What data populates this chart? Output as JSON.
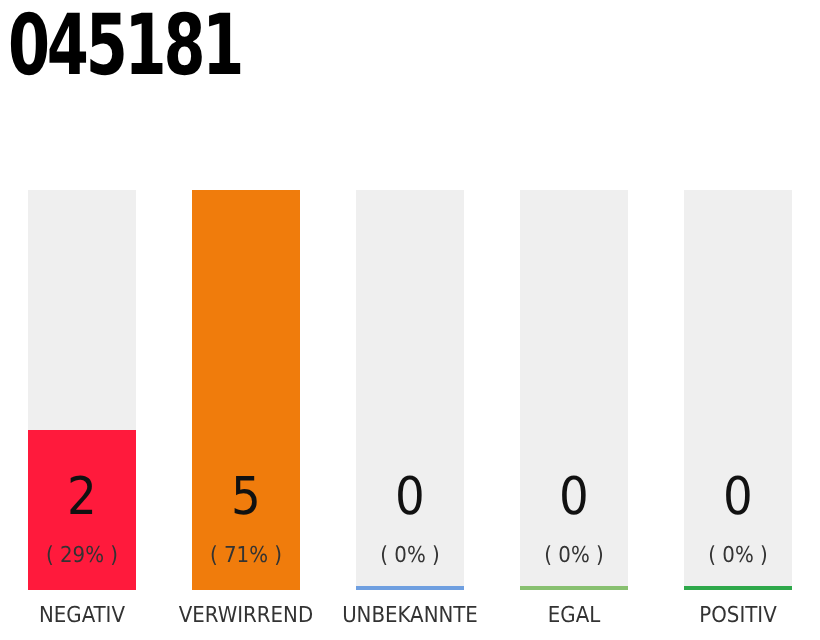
{
  "chart_data": {
    "type": "bar",
    "title": "045181",
    "categories": [
      "NEGATIV",
      "VERWIRREND",
      "UNBEKANNTE",
      "EGAL",
      "POSITIV"
    ],
    "values": [
      2,
      5,
      0,
      0,
      0
    ],
    "colors": [
      "#ff1a3c",
      "#f07c0c",
      "#6f9fe0",
      "#88c070",
      "#2ea84a"
    ],
    "value_labels": [
      "2\n( 29% )",
      "5\n( 71% )",
      "0\n( 0% )",
      "0\n( 0% )",
      "0\n( 0% )"
    ]
  }
}
